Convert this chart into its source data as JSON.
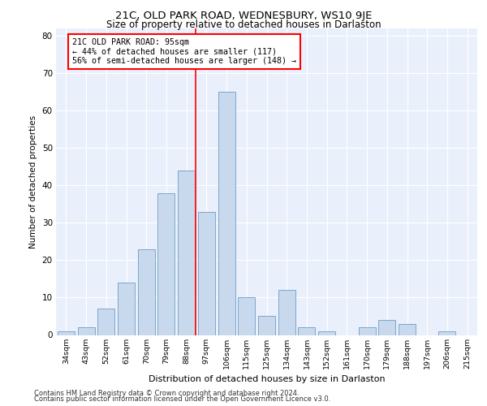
{
  "title": "21C, OLD PARK ROAD, WEDNESBURY, WS10 9JE",
  "subtitle": "Size of property relative to detached houses in Darlaston",
  "xlabel": "Distribution of detached houses by size in Darlaston",
  "ylabel": "Number of detached properties",
  "categories": [
    "34sqm",
    "43sqm",
    "52sqm",
    "61sqm",
    "70sqm",
    "79sqm",
    "88sqm",
    "97sqm",
    "106sqm",
    "115sqm",
    "125sqm",
    "134sqm",
    "143sqm",
    "152sqm",
    "161sqm",
    "170sqm",
    "179sqm",
    "188sqm",
    "197sqm",
    "206sqm",
    "215sqm"
  ],
  "values": [
    1,
    2,
    7,
    14,
    23,
    38,
    44,
    33,
    65,
    10,
    5,
    12,
    2,
    1,
    0,
    2,
    4,
    3,
    0,
    1,
    0
  ],
  "bar_color": "#c9d9ed",
  "bar_edge_color": "#7ba7cb",
  "red_line_bin_index": 6,
  "annotation_text_line1": "21C OLD PARK ROAD: 95sqm",
  "annotation_text_line2": "← 44% of detached houses are smaller (117)",
  "annotation_text_line3": "56% of semi-detached houses are larger (148) →",
  "ylim": [
    0,
    82
  ],
  "yticks": [
    0,
    10,
    20,
    30,
    40,
    50,
    60,
    70,
    80
  ],
  "background_color": "#eaf0fb",
  "grid_color": "#ffffff",
  "footer_line1": "Contains HM Land Registry data © Crown copyright and database right 2024.",
  "footer_line2": "Contains public sector information licensed under the Open Government Licence v3.0."
}
